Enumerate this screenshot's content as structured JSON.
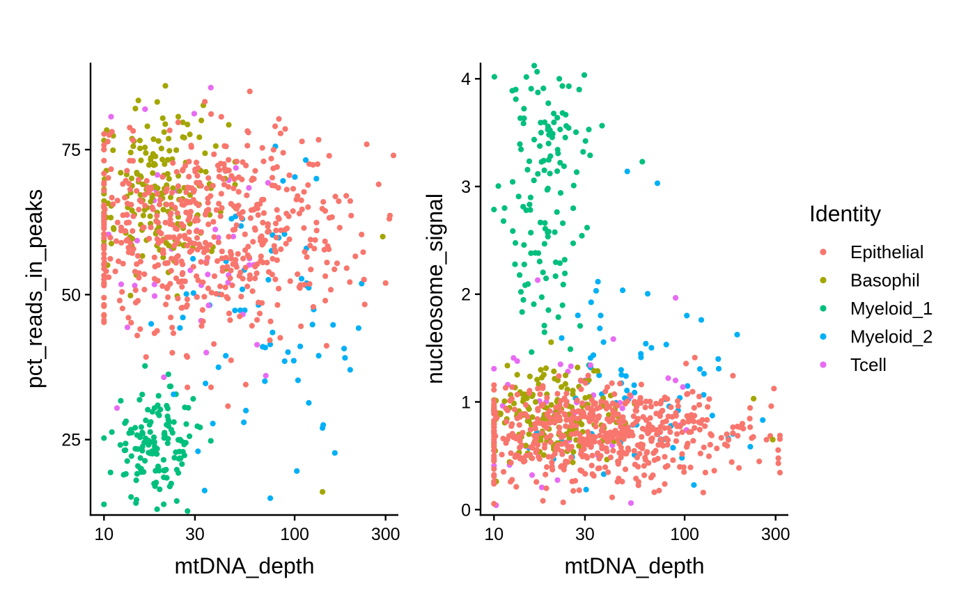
{
  "chart_data": [
    {
      "type": "scatter",
      "xlabel": "mtDNA_depth",
      "ylabel": "pct_reads_in_peaks",
      "x_scale": "log10",
      "xlim": [
        8.5,
        350
      ],
      "ylim": [
        12,
        90
      ],
      "x_ticks": [
        10,
        30,
        100,
        300
      ],
      "x_tick_labels": [
        "10",
        "30",
        "100",
        "300"
      ],
      "y_ticks": [
        25,
        50,
        75
      ],
      "y_tick_labels": [
        "25",
        "50",
        "75"
      ],
      "grid": false,
      "groups": [
        {
          "identity": "Epithelial",
          "n": 560,
          "x_log10_mean": 1.55,
          "x_log10_sd": 0.38,
          "y_mean": 61,
          "y_sd": 9
        },
        {
          "identity": "Basophil",
          "n": 180,
          "x_log10_mean": 1.3,
          "x_log10_sd": 0.18,
          "y_mean": 68,
          "y_sd": 7
        },
        {
          "identity": "Myeloid_1",
          "n": 140,
          "x_log10_mean": 1.28,
          "x_log10_sd": 0.12,
          "y_mean": 24,
          "y_sd": 5
        },
        {
          "identity": "Myeloid_2",
          "n": 70,
          "x_log10_mean": 1.8,
          "x_log10_sd": 0.25,
          "y_mean": 45,
          "y_sd": 12
        },
        {
          "identity": "Tcell",
          "n": 45,
          "x_log10_mean": 1.45,
          "x_log10_sd": 0.3,
          "y_mean": 55,
          "y_sd": 12
        }
      ],
      "points": [
        {
          "identity": "Epithelial",
          "x": 330,
          "y": 74
        },
        {
          "identity": "Epithelial",
          "x": 300,
          "y": 52
        },
        {
          "identity": "Basophil",
          "x": 21,
          "y": 86
        },
        {
          "identity": "Basophil",
          "x": 290,
          "y": 60
        },
        {
          "identity": "Basophil",
          "x": 140,
          "y": 16
        },
        {
          "identity": "Myeloid_1",
          "x": 19,
          "y": 13
        },
        {
          "identity": "Myeloid_2",
          "x": 130,
          "y": 70
        },
        {
          "identity": "Myeloid_2",
          "x": 140,
          "y": 27
        }
      ]
    },
    {
      "type": "scatter",
      "xlabel": "mtDNA_depth",
      "ylabel": "nucleosome_signal",
      "x_scale": "log10",
      "xlim": [
        8.5,
        350
      ],
      "ylim": [
        -0.05,
        4.15
      ],
      "x_ticks": [
        10,
        30,
        100,
        300
      ],
      "x_tick_labels": [
        "10",
        "30",
        "100",
        "300"
      ],
      "y_ticks": [
        0,
        1,
        2,
        3,
        4
      ],
      "y_tick_labels": [
        "0",
        "1",
        "2",
        "3",
        "4"
      ],
      "grid": false,
      "groups": [
        {
          "identity": "Epithelial",
          "n": 560,
          "x_log10_mean": 1.55,
          "x_log10_sd": 0.38,
          "y_mean": 0.7,
          "y_sd": 0.22
        },
        {
          "identity": "Basophil",
          "n": 180,
          "x_log10_mean": 1.3,
          "x_log10_sd": 0.18,
          "y_mean": 0.85,
          "y_sd": 0.22
        },
        {
          "identity": "Myeloid_1",
          "n": 140,
          "x_log10_mean": 1.28,
          "x_log10_sd": 0.12,
          "y_mean": 3.0,
          "y_sd": 0.85
        },
        {
          "identity": "Myeloid_2",
          "n": 70,
          "x_log10_mean": 1.8,
          "x_log10_sd": 0.25,
          "y_mean": 1.1,
          "y_sd": 0.55
        },
        {
          "identity": "Tcell",
          "n": 45,
          "x_log10_mean": 1.45,
          "x_log10_sd": 0.3,
          "y_mean": 1.0,
          "y_sd": 0.5
        }
      ],
      "points": [
        {
          "identity": "Myeloid_1",
          "x": 22,
          "y": 4.0
        },
        {
          "identity": "Myeloid_1",
          "x": 13,
          "y": 3.9
        },
        {
          "identity": "Myeloid_1",
          "x": 28,
          "y": 3.9
        },
        {
          "identity": "Myeloid_1",
          "x": 60,
          "y": 3.23
        },
        {
          "identity": "Myeloid_2",
          "x": 72,
          "y": 3.03
        },
        {
          "identity": "Myeloid_2",
          "x": 50,
          "y": 3.14
        },
        {
          "identity": "Epithelial",
          "x": 310,
          "y": 0.43
        },
        {
          "identity": "Basophil",
          "x": 290,
          "y": 0.65
        },
        {
          "identity": "Basophil",
          "x": 230,
          "y": 1.03
        },
        {
          "identity": "Epithelial",
          "x": 28,
          "y": 0.18
        }
      ]
    }
  ],
  "legend": {
    "title": "Identity",
    "placement": "right",
    "items": [
      {
        "label": "Epithelial",
        "color": "#F8766D"
      },
      {
        "label": "Basophil",
        "color": "#A3A500"
      },
      {
        "label": "Myeloid_1",
        "color": "#00BF7D"
      },
      {
        "label": "Myeloid_2",
        "color": "#00B0F6"
      },
      {
        "label": "Tcell",
        "color": "#E76BF3"
      }
    ]
  }
}
